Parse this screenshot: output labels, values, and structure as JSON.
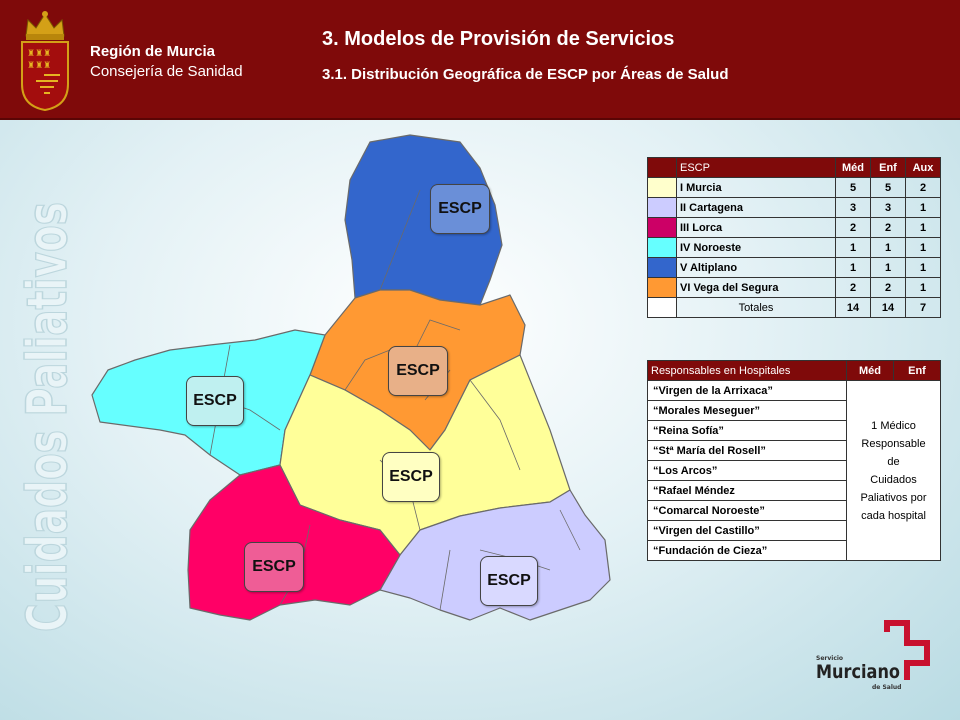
{
  "header": {
    "region_line1": "Región de Murcia",
    "region_line2": "Consejería de Sanidad",
    "title": "3. Modelos de Provisión de Servicios",
    "subtitle": "3.1. Distribución Geográfica de ESCP por Áreas de Salud"
  },
  "side_title": "Cuidados Paliativos",
  "map": {
    "escp_label": "ESCP",
    "colors": {
      "murcia": "#ffff99",
      "cartagena": "#ccccff",
      "lorca": "#ff0066",
      "noroeste": "#66ffff",
      "altiplano": "#3366cc",
      "vega": "#ff9933"
    }
  },
  "escp_table": {
    "headers": [
      "ESCP",
      "Méd",
      "Enf",
      "Aux"
    ],
    "rows": [
      {
        "name": "I Murcia",
        "med": "5",
        "enf": "5",
        "aux": "2",
        "color": "#ffffcc"
      },
      {
        "name": "II Cartagena",
        "med": "3",
        "enf": "3",
        "aux": "1",
        "color": "#ccccff"
      },
      {
        "name": "III Lorca",
        "med": "2",
        "enf": "2",
        "aux": "1",
        "color": "#cc0066"
      },
      {
        "name": "IV Noroeste",
        "med": "1",
        "enf": "1",
        "aux": "1",
        "color": "#66ffff"
      },
      {
        "name": "V Altiplano",
        "med": "1",
        "enf": "1",
        "aux": "1",
        "color": "#3366cc"
      },
      {
        "name": "VI Vega del Segura",
        "med": "2",
        "enf": "2",
        "aux": "1",
        "color": "#ff9933"
      }
    ],
    "totals": {
      "label": "Totales",
      "med": "14",
      "enf": "14",
      "aux": "7"
    }
  },
  "hospital_table": {
    "headers": [
      "Responsables en Hospitales",
      "Méd",
      "Enf"
    ],
    "hospitals": [
      "“Virgen de la Arrixaca”",
      "“Morales Meseguer”",
      "“Reina Sofía”",
      "“Stª María del Rosell”",
      "“Los Arcos”",
      "“Rafael Méndez",
      "“Comarcal Noroeste”",
      "“Virgen del Castillo”",
      "“Fundación de Cieza”"
    ],
    "note": [
      "1 Médico",
      "Responsable",
      "de",
      "Cuidados",
      "Paliativos por",
      "cada hospital"
    ]
  },
  "logo": {
    "line1": "Servicio",
    "line2": "Murciano",
    "line3": "de Salud",
    "color": "#c8102e"
  }
}
